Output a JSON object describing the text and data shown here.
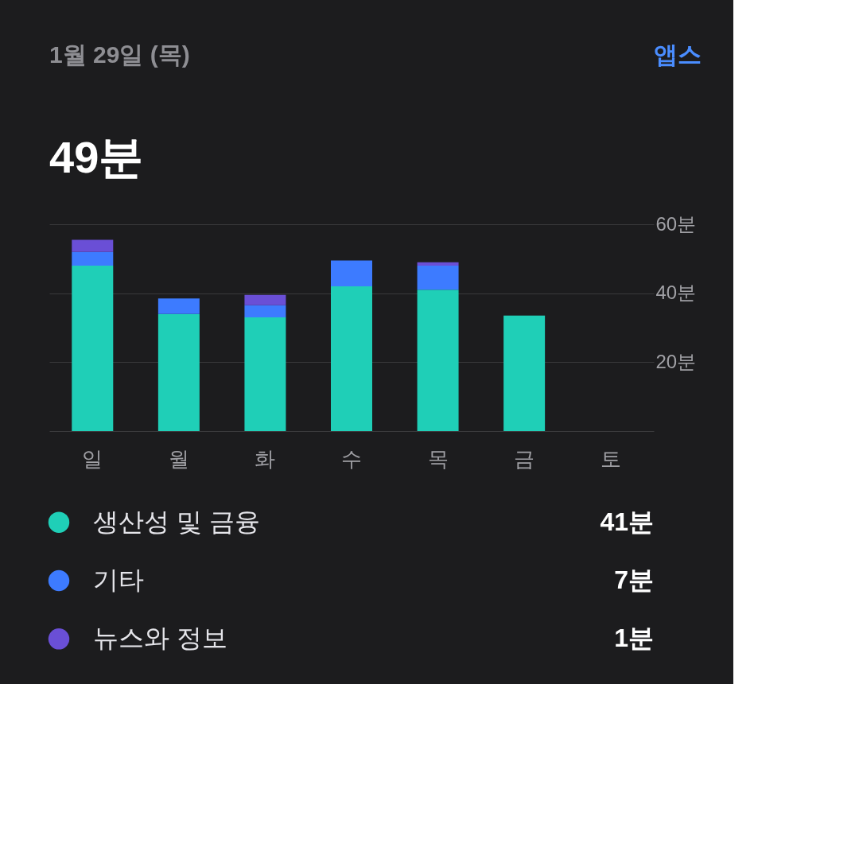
{
  "chart_data": {
    "type": "bar",
    "title": "1월 29일 (목)",
    "subtitle": "49분",
    "categories": [
      "일",
      "월",
      "화",
      "수",
      "목",
      "금",
      "토"
    ],
    "stacked": true,
    "ylim": [
      0,
      60
    ],
    "yticks": [
      {
        "value": 0,
        "label": null
      },
      {
        "value": 20,
        "label": "20분"
      },
      {
        "value": 40,
        "label": "40분"
      },
      {
        "value": 60,
        "label": "60분"
      }
    ],
    "grid": "y",
    "legend": "bottom",
    "series": [
      {
        "name": "생산성 및 금융",
        "color": "#1fcfb7",
        "values": [
          48,
          34,
          33,
          42,
          41,
          33.5,
          null
        ]
      },
      {
        "name": "기타",
        "color": "#3d7bff",
        "values": [
          4,
          4.5,
          3.5,
          7.5,
          7,
          null,
          null
        ]
      },
      {
        "name": "뉴스와 정보",
        "color": "#6a4fd6",
        "values": [
          3.5,
          null,
          3,
          null,
          1,
          null,
          null
        ]
      }
    ],
    "annotations": [
      "앱스",
      "41분",
      "7분",
      "1분"
    ]
  }
}
